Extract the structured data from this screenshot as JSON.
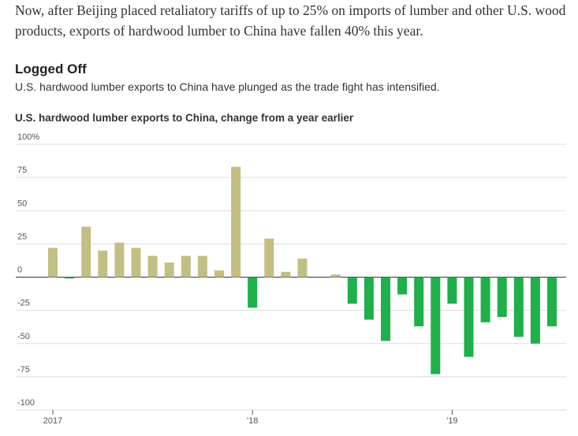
{
  "chart_data": {
    "type": "bar",
    "intro": "Now, after Beijing placed retaliatory tariffs of up to 25% on imports of lumber and other U.S. wood products, exports of hardwood lumber to China have fallen 40% this year.",
    "title": "Logged Off",
    "subtitle": "U.S. hardwood lumber exports to China have plunged as the trade fight has intensified.",
    "chart_title": "U.S. hardwood lumber exports to China, change from a year earlier",
    "categories": [
      "2017",
      null,
      null,
      null,
      null,
      null,
      null,
      null,
      null,
      null,
      null,
      null,
      "'18",
      null,
      null,
      null,
      null,
      null,
      null,
      null,
      null,
      null,
      null,
      null,
      "'19",
      null,
      null,
      null,
      null,
      null,
      null
    ],
    "values": [
      22,
      -1,
      38,
      20,
      26,
      22,
      16,
      11,
      16,
      16,
      5,
      83,
      -23,
      29,
      4,
      14,
      0,
      2,
      -20,
      -32,
      -48,
      -13,
      -37,
      -73,
      -20,
      -60,
      -34,
      -30,
      -45,
      -50,
      -37
    ],
    "colors": {
      "positive": "#c2bf84",
      "negative": "#1faf4b"
    },
    "ylim": [
      -100,
      100
    ],
    "yticks": [
      {
        "value": 100,
        "label": "100%"
      },
      75,
      50,
      25,
      0,
      -25,
      -50,
      -75,
      -100
    ],
    "grid": true
  }
}
